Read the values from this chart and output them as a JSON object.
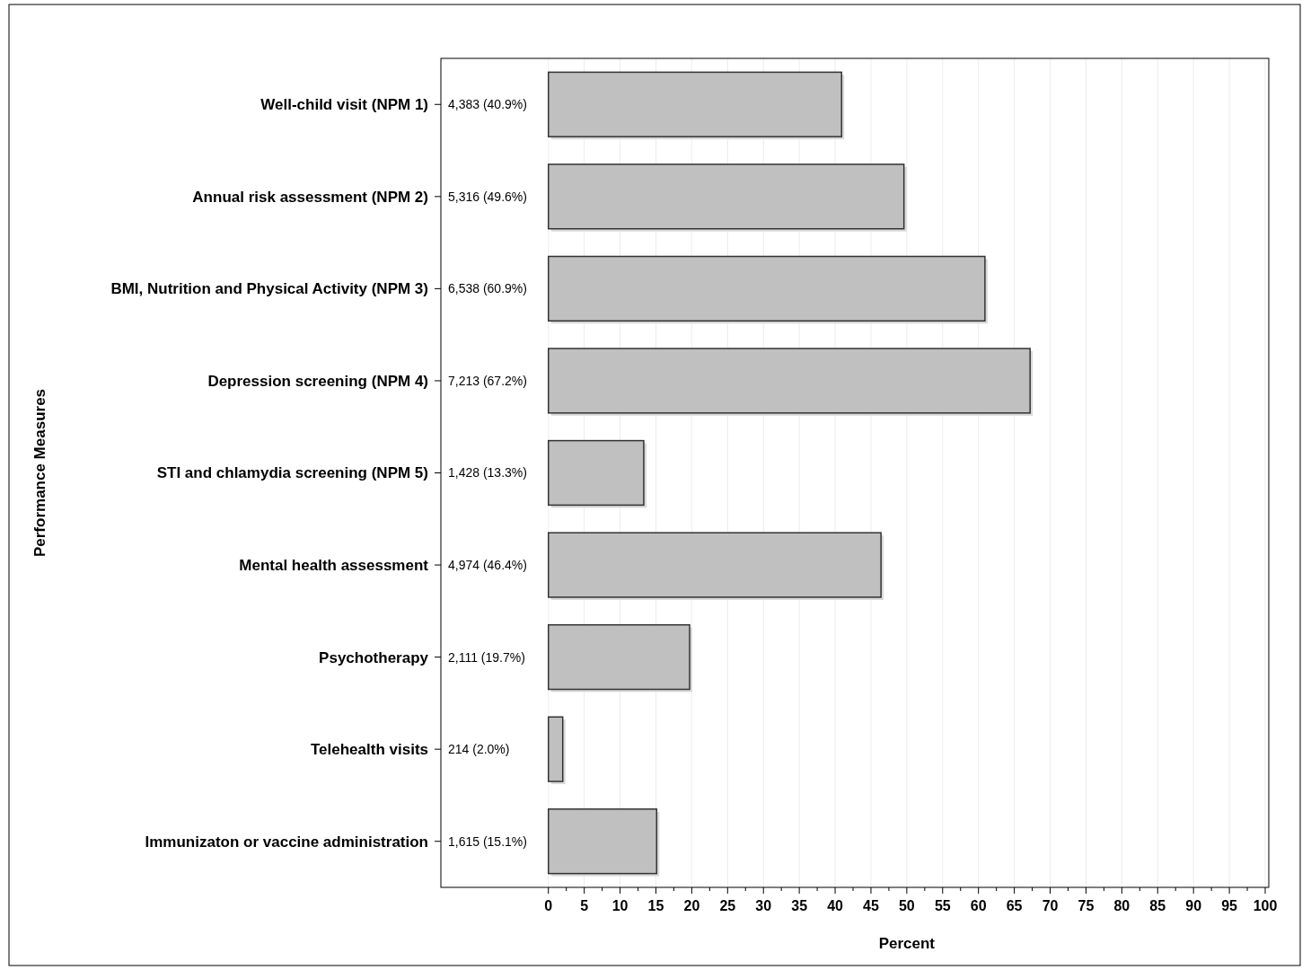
{
  "chart_data": {
    "type": "bar",
    "orientation": "horizontal",
    "xlabel": "Percent",
    "ylabel": "Performance Measures",
    "categories": [
      "Well-child visit (NPM 1)",
      "Annual risk assessment (NPM 2)",
      "BMI, Nutrition and Physical Activity (NPM 3)",
      "Depression screening (NPM 4)",
      "STI and chlamydia screening (NPM 5)",
      "Mental health assessment",
      "Psychotherapy",
      "Telehealth visits",
      "Immunizaton or vaccine administration"
    ],
    "values": [
      40.9,
      49.6,
      60.9,
      67.2,
      13.3,
      46.4,
      19.7,
      2.0,
      15.1
    ],
    "value_labels": [
      "4,383 (40.9%)",
      "5,316 (49.6%)",
      "6,538 (60.9%)",
      "7,213 (67.2%)",
      "1,428 (13.3%)",
      "4,974 (46.4%)",
      "2,111 (19.7%)",
      "214 (2.0%)",
      "1,615 (15.1%)"
    ],
    "color": "#c0c0c0",
    "xlim": [
      -15,
      100.5
    ],
    "xticks": [
      0,
      {
        "value": 2.5,
        "label": null
      },
      5,
      {
        "value": 7.5,
        "label": null
      },
      10,
      {
        "value": 12.5,
        "label": null
      },
      15,
      {
        "value": 17.5,
        "label": null
      },
      20,
      {
        "value": 22.5,
        "label": null
      },
      25,
      {
        "value": 27.5,
        "label": null
      },
      30,
      {
        "value": 32.5,
        "label": null
      },
      35,
      {
        "value": 37.5,
        "label": null
      },
      40,
      {
        "value": 42.5,
        "label": null
      },
      45,
      {
        "value": 47.5,
        "label": null
      },
      50,
      {
        "value": 52.5,
        "label": null
      },
      55,
      {
        "value": 57.5,
        "label": null
      },
      60,
      {
        "value": 62.5,
        "label": null
      },
      65,
      {
        "value": 67.5,
        "label": null
      },
      70,
      {
        "value": 72.5,
        "label": null
      },
      75,
      {
        "value": 77.5,
        "label": null
      },
      80,
      {
        "value": 82.5,
        "label": null
      },
      85,
      {
        "value": 87.5,
        "label": null
      },
      90,
      {
        "value": 92.5,
        "label": null
      },
      95,
      {
        "value": 97.5,
        "label": null
      },
      100
    ],
    "grid": "x"
  }
}
